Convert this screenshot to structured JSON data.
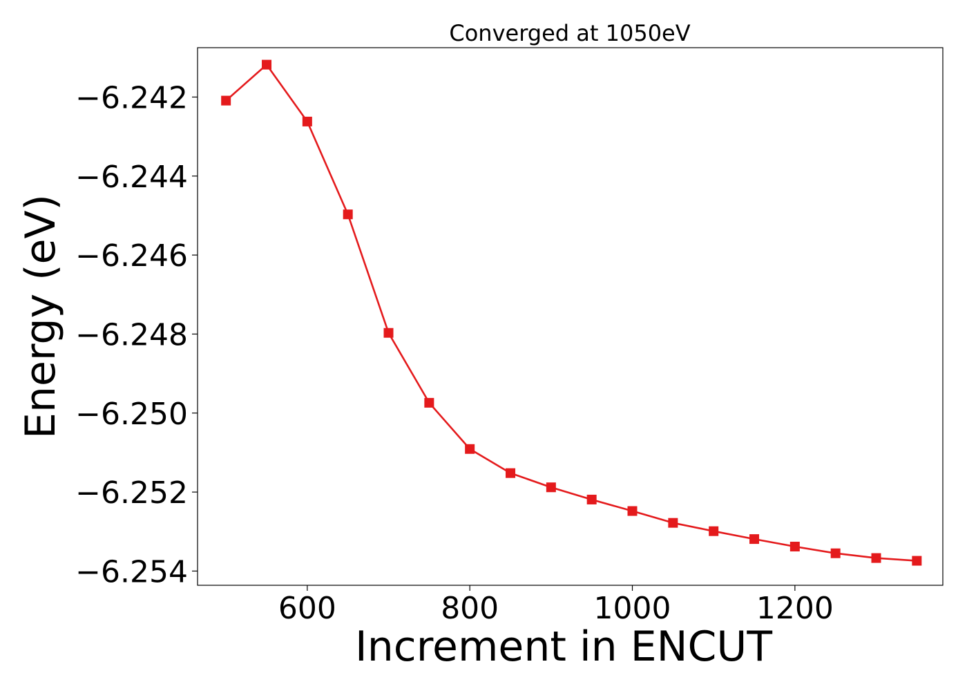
{
  "chart_data": {
    "type": "line",
    "title": "Converged at 1050eV",
    "xlabel": "Increment in ENCUT",
    "ylabel": "Energy (eV)",
    "xlim": [
      465,
      1382
    ],
    "ylim": [
      -6.25436,
      -6.24075
    ],
    "xticks": [
      600,
      800,
      1000,
      1200
    ],
    "xtick_labels": [
      "600",
      "800",
      "1000",
      "1200"
    ],
    "yticks": [
      -6.242,
      -6.244,
      -6.246,
      -6.248,
      -6.25,
      -6.252,
      -6.254
    ],
    "ytick_labels": [
      "−6.242",
      "−6.244",
      "−6.246",
      "−6.248",
      "−6.250",
      "−6.252",
      "−6.254"
    ],
    "grid": false,
    "legend": "none",
    "series": [
      {
        "color": "#e41a1c",
        "marker": "square",
        "x": [
          500,
          550,
          600,
          650,
          700,
          750,
          800,
          850,
          900,
          950,
          1000,
          1050,
          1100,
          1150,
          1200,
          1250,
          1300,
          1350
        ],
        "y": [
          -6.24209,
          -6.24118,
          -6.24262,
          -6.24497,
          -6.24797,
          -6.24974,
          -6.25091,
          -6.25152,
          -6.25188,
          -6.25219,
          -6.25248,
          -6.25278,
          -6.25299,
          -6.25319,
          -6.25338,
          -6.25355,
          -6.25367,
          -6.25374
        ]
      }
    ]
  }
}
